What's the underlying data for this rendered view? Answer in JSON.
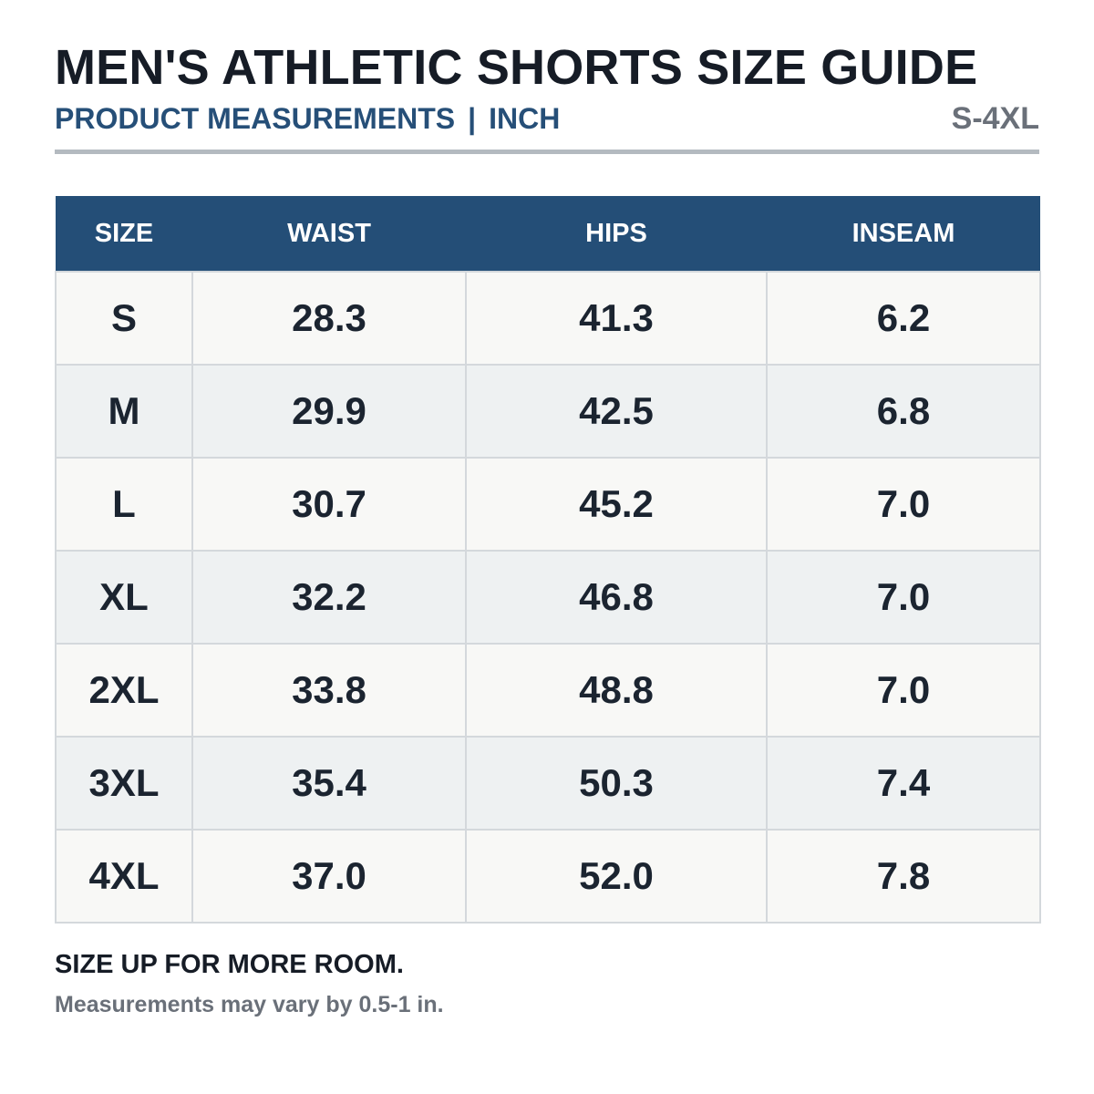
{
  "header": {
    "title": "MEN'S ATHLETIC SHORTS SIZE GUIDE",
    "subtitle_left": "PRODUCT MEASUREMENTS",
    "subtitle_separator": "|",
    "subtitle_unit": "INCH",
    "size_range": "S-4XL"
  },
  "table": {
    "columns": [
      "SIZE",
      "WAIST",
      "HIPS",
      "INSEAM"
    ],
    "rows": [
      [
        "S",
        "28.3",
        "41.3",
        "6.2"
      ],
      [
        "M",
        "29.9",
        "42.5",
        "6.8"
      ],
      [
        "L",
        "30.7",
        "45.2",
        "7.0"
      ],
      [
        "XL",
        "32.2",
        "46.8",
        "7.0"
      ],
      [
        "2XL",
        "33.8",
        "48.8",
        "7.0"
      ],
      [
        "3XL",
        "35.4",
        "50.3",
        "7.4"
      ],
      [
        "4XL",
        "37.0",
        "52.0",
        "7.8"
      ]
    ]
  },
  "notes": {
    "primary": "SIZE UP FOR MORE ROOM.",
    "secondary": "Measurements may vary by 0.5-1 in."
  },
  "colors": {
    "header_bg": "#244e77",
    "subtitle": "#264f78",
    "muted": "#6a7079",
    "row_odd": "#f8f8f6",
    "row_even": "#eef1f2",
    "grid": "#d4d8dc"
  }
}
